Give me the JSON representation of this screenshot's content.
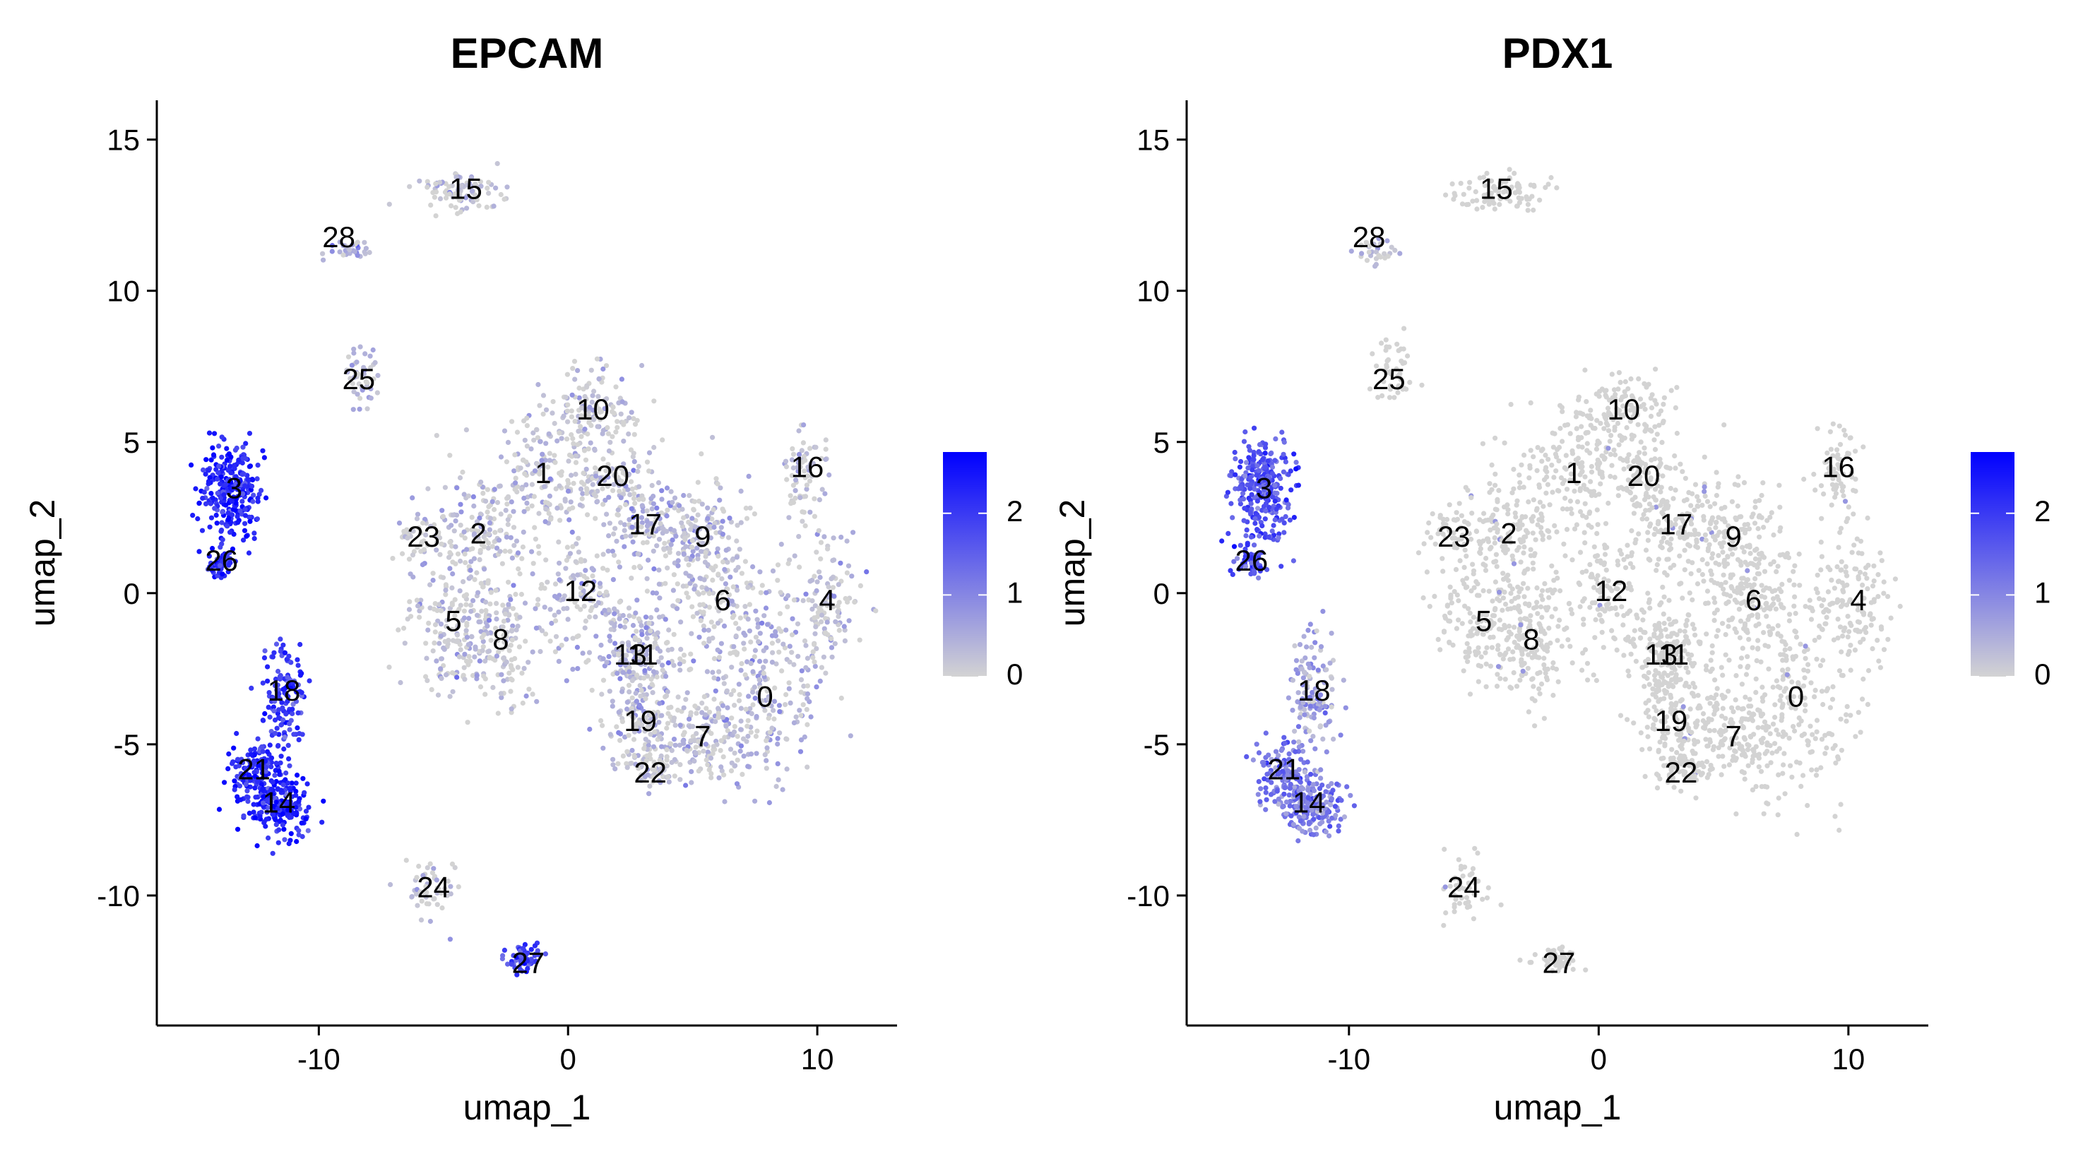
{
  "chart_data": [
    {
      "type": "scatter",
      "title": "EPCAM",
      "xlabel": "umap_1",
      "ylabel": "umap_2",
      "xlim": [
        -16.5,
        13.2
      ],
      "ylim": [
        -14.3,
        16.3
      ],
      "xticks": [
        {
          "value": -10,
          "label": "-10"
        },
        {
          "value": 0,
          "label": "0"
        },
        {
          "value": 10,
          "label": "10"
        }
      ],
      "yticks": [
        {
          "value": -10,
          "label": "-10"
        },
        {
          "value": -5,
          "label": "-5"
        },
        {
          "value": 0,
          "label": "0"
        },
        {
          "value": 5,
          "label": "5"
        },
        {
          "value": 10,
          "label": "10"
        },
        {
          "value": 15,
          "label": "15"
        }
      ],
      "color_scale": {
        "low": "#d3d3d3",
        "high": "#0000ff",
        "min": 0,
        "max": 2.75,
        "ticks": [
          {
            "value": 0,
            "label": "0"
          },
          {
            "value": 1,
            "label": "1"
          },
          {
            "value": 2,
            "label": "2"
          }
        ]
      },
      "grid": false,
      "legend": "right",
      "clusters": [
        {
          "label": "0",
          "x": 7.8,
          "y": -3.6,
          "sx": 1.5,
          "sy": 1.8,
          "n": 200,
          "expr": 0.35
        },
        {
          "label": "1",
          "x": -0.9,
          "y": 3.9,
          "sx": 1.3,
          "sy": 1.2,
          "n": 170,
          "expr": 0.1
        },
        {
          "label": "2",
          "x": -3.6,
          "y": 1.9,
          "sx": 1.3,
          "sy": 1.3,
          "n": 170,
          "expr": 0.1
        },
        {
          "label": "3",
          "x": -13.5,
          "y": 3.4,
          "sx": 0.75,
          "sy": 1.0,
          "n": 280,
          "expr": 2.3
        },
        {
          "label": "4",
          "x": 10.3,
          "y": -0.3,
          "sx": 1.0,
          "sy": 1.4,
          "n": 140,
          "expr": 0.1
        },
        {
          "label": "5",
          "x": -4.7,
          "y": -1.0,
          "sx": 1.1,
          "sy": 1.3,
          "n": 150,
          "expr": 0.1
        },
        {
          "label": "6",
          "x": 6.1,
          "y": -0.4,
          "sx": 1.3,
          "sy": 1.3,
          "n": 160,
          "expr": 0.15
        },
        {
          "label": "7",
          "x": 5.4,
          "y": -4.8,
          "sx": 1.3,
          "sy": 0.9,
          "n": 150,
          "expr": 0.15
        },
        {
          "label": "8",
          "x": -2.7,
          "y": -1.6,
          "sx": 1.1,
          "sy": 1.2,
          "n": 150,
          "expr": 0.1
        },
        {
          "label": "9",
          "x": 5.4,
          "y": 1.8,
          "sx": 1.1,
          "sy": 1.3,
          "n": 150,
          "expr": 0.2
        },
        {
          "label": "10",
          "x": 1.0,
          "y": 6.0,
          "sx": 1.2,
          "sy": 0.8,
          "n": 130,
          "expr": 0.1
        },
        {
          "label": "11",
          "x": 3.0,
          "y": -2.1,
          "sx": 0.9,
          "sy": 1.0,
          "n": 110,
          "expr": 0.3
        },
        {
          "label": "12",
          "x": 0.5,
          "y": 0.0,
          "sx": 1.0,
          "sy": 1.0,
          "n": 120,
          "expr": 0.15
        },
        {
          "label": "13",
          "x": 2.5,
          "y": -2.1,
          "sx": 0.9,
          "sy": 1.0,
          "n": 110,
          "expr": 0.3
        },
        {
          "label": "14",
          "x": -11.6,
          "y": -7.0,
          "sx": 0.8,
          "sy": 0.6,
          "n": 200,
          "expr": 2.3
        },
        {
          "label": "15",
          "x": -4.1,
          "y": 13.3,
          "sx": 1.0,
          "sy": 0.35,
          "n": 90,
          "expr": 0.05
        },
        {
          "label": "16",
          "x": 9.5,
          "y": 4.0,
          "sx": 0.55,
          "sy": 0.9,
          "n": 70,
          "expr": 0.05
        },
        {
          "label": "17",
          "x": 3.1,
          "y": 2.2,
          "sx": 0.9,
          "sy": 0.9,
          "n": 110,
          "expr": 0.3
        },
        {
          "label": "18",
          "x": -11.4,
          "y": -3.4,
          "sx": 0.5,
          "sy": 1.2,
          "n": 130,
          "expr": 2.0
        },
        {
          "label": "19",
          "x": 2.9,
          "y": -4.3,
          "sx": 0.9,
          "sy": 0.8,
          "n": 100,
          "expr": 0.2
        },
        {
          "label": "20",
          "x": 1.8,
          "y": 3.8,
          "sx": 0.9,
          "sy": 0.8,
          "n": 100,
          "expr": 0.1
        },
        {
          "label": "21",
          "x": -12.6,
          "y": -5.9,
          "sx": 0.6,
          "sy": 0.6,
          "n": 120,
          "expr": 2.2
        },
        {
          "label": "22",
          "x": 3.3,
          "y": -5.8,
          "sx": 0.7,
          "sy": 0.35,
          "n": 70,
          "expr": 0.1
        },
        {
          "label": "23",
          "x": -6.0,
          "y": 2.0,
          "sx": 0.5,
          "sy": 0.5,
          "n": 40,
          "expr": 0.05
        },
        {
          "label": "24",
          "x": -5.5,
          "y": -9.8,
          "sx": 0.6,
          "sy": 0.6,
          "n": 50,
          "expr": 0.1
        },
        {
          "label": "25",
          "x": -8.3,
          "y": 7.3,
          "sx": 0.55,
          "sy": 0.6,
          "n": 45,
          "expr": 0.3
        },
        {
          "label": "26",
          "x": -14.0,
          "y": 1.0,
          "sx": 0.35,
          "sy": 0.3,
          "n": 50,
          "expr": 2.1
        },
        {
          "label": "27",
          "x": -1.7,
          "y": -12.1,
          "sx": 0.45,
          "sy": 0.25,
          "n": 55,
          "expr": 1.9
        },
        {
          "label": "28",
          "x": -8.9,
          "y": 11.3,
          "sx": 0.6,
          "sy": 0.2,
          "n": 30,
          "expr": 0.6
        }
      ],
      "cluster_labels": [
        {
          "text": "0",
          "x": 7.9,
          "y": -3.5
        },
        {
          "text": "1",
          "x": -1.0,
          "y": 3.9
        },
        {
          "text": "2",
          "x": -3.6,
          "y": 1.9
        },
        {
          "text": "3",
          "x": -13.4,
          "y": 3.4
        },
        {
          "text": "4",
          "x": 10.4,
          "y": -0.3
        },
        {
          "text": "5",
          "x": -4.6,
          "y": -1.0
        },
        {
          "text": "6",
          "x": 6.2,
          "y": -0.3
        },
        {
          "text": "7",
          "x": 5.4,
          "y": -4.8
        },
        {
          "text": "8",
          "x": -2.7,
          "y": -1.6
        },
        {
          "text": "9",
          "x": 5.4,
          "y": 1.8
        },
        {
          "text": "10",
          "x": 1.0,
          "y": 6.0
        },
        {
          "text": "11",
          "x": 3.0,
          "y": -2.1
        },
        {
          "text": "12",
          "x": 0.5,
          "y": 0.0
        },
        {
          "text": "13",
          "x": 2.5,
          "y": -2.1
        },
        {
          "text": "14",
          "x": -11.6,
          "y": -7.0
        },
        {
          "text": "15",
          "x": -4.1,
          "y": 13.3
        },
        {
          "text": "16",
          "x": 9.6,
          "y": 4.1
        },
        {
          "text": "17",
          "x": 3.1,
          "y": 2.2
        },
        {
          "text": "18",
          "x": -11.4,
          "y": -3.3
        },
        {
          "text": "19",
          "x": 2.9,
          "y": -4.3
        },
        {
          "text": "20",
          "x": 1.8,
          "y": 3.8
        },
        {
          "text": "21",
          "x": -12.6,
          "y": -5.9
        },
        {
          "text": "22",
          "x": 3.3,
          "y": -6.0
        },
        {
          "text": "23",
          "x": -5.8,
          "y": 1.8
        },
        {
          "text": "24",
          "x": -5.4,
          "y": -9.8
        },
        {
          "text": "25",
          "x": -8.4,
          "y": 7.0
        },
        {
          "text": "26",
          "x": -13.9,
          "y": 1.0
        },
        {
          "text": "27",
          "x": -1.6,
          "y": -12.3
        },
        {
          "text": "28",
          "x": -9.2,
          "y": 11.7
        }
      ]
    },
    {
      "type": "scatter",
      "title": "PDX1",
      "xlabel": "umap_1",
      "ylabel": "umap_2",
      "xlim": [
        -16.5,
        13.2
      ],
      "ylim": [
        -14.3,
        16.3
      ],
      "xticks": [
        {
          "value": -10,
          "label": "-10"
        },
        {
          "value": 0,
          "label": "0"
        },
        {
          "value": 10,
          "label": "10"
        }
      ],
      "yticks": [
        {
          "value": -10,
          "label": "-10"
        },
        {
          "value": -5,
          "label": "-5"
        },
        {
          "value": 0,
          "label": "0"
        },
        {
          "value": 5,
          "label": "5"
        },
        {
          "value": 10,
          "label": "10"
        },
        {
          "value": 15,
          "label": "15"
        }
      ],
      "color_scale": {
        "low": "#d3d3d3",
        "high": "#0000ff",
        "min": 0,
        "max": 2.75,
        "ticks": [
          {
            "value": 0,
            "label": "0"
          },
          {
            "value": 1,
            "label": "1"
          },
          {
            "value": 2,
            "label": "2"
          }
        ]
      },
      "grid": false,
      "legend": "right",
      "clusters": [
        {
          "label": "0",
          "x": 7.8,
          "y": -3.6,
          "sx": 1.5,
          "sy": 1.8,
          "n": 200,
          "expr": 0.0
        },
        {
          "label": "1",
          "x": -0.9,
          "y": 3.9,
          "sx": 1.3,
          "sy": 1.2,
          "n": 170,
          "expr": 0.0
        },
        {
          "label": "2",
          "x": -3.6,
          "y": 1.9,
          "sx": 1.3,
          "sy": 1.3,
          "n": 170,
          "expr": 0.0
        },
        {
          "label": "3",
          "x": -13.5,
          "y": 3.4,
          "sx": 0.75,
          "sy": 1.0,
          "n": 280,
          "expr": 1.7
        },
        {
          "label": "4",
          "x": 10.3,
          "y": -0.3,
          "sx": 1.0,
          "sy": 1.4,
          "n": 140,
          "expr": 0.0
        },
        {
          "label": "5",
          "x": -4.7,
          "y": -1.0,
          "sx": 1.1,
          "sy": 1.3,
          "n": 150,
          "expr": 0.0
        },
        {
          "label": "6",
          "x": 6.1,
          "y": -0.4,
          "sx": 1.3,
          "sy": 1.3,
          "n": 160,
          "expr": 0.02
        },
        {
          "label": "7",
          "x": 5.4,
          "y": -4.8,
          "sx": 1.3,
          "sy": 0.9,
          "n": 150,
          "expr": 0.0
        },
        {
          "label": "8",
          "x": -2.7,
          "y": -1.6,
          "sx": 1.1,
          "sy": 1.2,
          "n": 150,
          "expr": 0.0
        },
        {
          "label": "9",
          "x": 5.4,
          "y": 1.8,
          "sx": 1.1,
          "sy": 1.3,
          "n": 150,
          "expr": 0.0
        },
        {
          "label": "10",
          "x": 1.0,
          "y": 6.0,
          "sx": 1.2,
          "sy": 0.8,
          "n": 130,
          "expr": 0.0
        },
        {
          "label": "11",
          "x": 3.0,
          "y": -2.1,
          "sx": 0.9,
          "sy": 1.0,
          "n": 110,
          "expr": 0.0
        },
        {
          "label": "12",
          "x": 0.5,
          "y": 0.0,
          "sx": 1.0,
          "sy": 1.0,
          "n": 120,
          "expr": 0.0
        },
        {
          "label": "13",
          "x": 2.5,
          "y": -2.1,
          "sx": 0.9,
          "sy": 1.0,
          "n": 110,
          "expr": 0.0
        },
        {
          "label": "14",
          "x": -11.6,
          "y": -7.0,
          "sx": 0.8,
          "sy": 0.6,
          "n": 200,
          "expr": 1.1
        },
        {
          "label": "15",
          "x": -4.1,
          "y": 13.3,
          "sx": 1.0,
          "sy": 0.35,
          "n": 90,
          "expr": 0.0
        },
        {
          "label": "16",
          "x": 9.5,
          "y": 4.0,
          "sx": 0.55,
          "sy": 0.9,
          "n": 70,
          "expr": 0.0
        },
        {
          "label": "17",
          "x": 3.1,
          "y": 2.2,
          "sx": 0.9,
          "sy": 0.9,
          "n": 110,
          "expr": 0.0
        },
        {
          "label": "18",
          "x": -11.4,
          "y": -3.4,
          "sx": 0.5,
          "sy": 1.2,
          "n": 130,
          "expr": 0.6
        },
        {
          "label": "19",
          "x": 2.9,
          "y": -4.3,
          "sx": 0.9,
          "sy": 0.8,
          "n": 100,
          "expr": 0.0
        },
        {
          "label": "20",
          "x": 1.8,
          "y": 3.8,
          "sx": 0.9,
          "sy": 0.8,
          "n": 100,
          "expr": 0.0
        },
        {
          "label": "21",
          "x": -12.6,
          "y": -5.9,
          "sx": 0.6,
          "sy": 0.6,
          "n": 120,
          "expr": 1.2
        },
        {
          "label": "22",
          "x": 3.3,
          "y": -5.8,
          "sx": 0.7,
          "sy": 0.35,
          "n": 70,
          "expr": 0.0
        },
        {
          "label": "23",
          "x": -6.0,
          "y": 2.0,
          "sx": 0.5,
          "sy": 0.5,
          "n": 40,
          "expr": 0.0
        },
        {
          "label": "24",
          "x": -5.5,
          "y": -9.8,
          "sx": 0.6,
          "sy": 0.6,
          "n": 50,
          "expr": 0.0
        },
        {
          "label": "25",
          "x": -8.3,
          "y": 7.3,
          "sx": 0.55,
          "sy": 0.6,
          "n": 45,
          "expr": 0.0
        },
        {
          "label": "26",
          "x": -14.0,
          "y": 1.0,
          "sx": 0.35,
          "sy": 0.3,
          "n": 50,
          "expr": 1.6
        },
        {
          "label": "27",
          "x": -1.7,
          "y": -12.1,
          "sx": 0.45,
          "sy": 0.25,
          "n": 55,
          "expr": 0.0
        },
        {
          "label": "28",
          "x": -8.9,
          "y": 11.3,
          "sx": 0.6,
          "sy": 0.2,
          "n": 30,
          "expr": 0.2
        }
      ],
      "cluster_labels": [
        {
          "text": "0",
          "x": 7.9,
          "y": -3.5
        },
        {
          "text": "1",
          "x": -1.0,
          "y": 3.9
        },
        {
          "text": "2",
          "x": -3.6,
          "y": 1.9
        },
        {
          "text": "3",
          "x": -13.4,
          "y": 3.4
        },
        {
          "text": "4",
          "x": 10.4,
          "y": -0.3
        },
        {
          "text": "5",
          "x": -4.6,
          "y": -1.0
        },
        {
          "text": "6",
          "x": 6.2,
          "y": -0.3
        },
        {
          "text": "7",
          "x": 5.4,
          "y": -4.8
        },
        {
          "text": "8",
          "x": -2.7,
          "y": -1.6
        },
        {
          "text": "9",
          "x": 5.4,
          "y": 1.8
        },
        {
          "text": "10",
          "x": 1.0,
          "y": 6.0
        },
        {
          "text": "11",
          "x": 3.0,
          "y": -2.1
        },
        {
          "text": "12",
          "x": 0.5,
          "y": 0.0
        },
        {
          "text": "13",
          "x": 2.5,
          "y": -2.1
        },
        {
          "text": "14",
          "x": -11.6,
          "y": -7.0
        },
        {
          "text": "15",
          "x": -4.1,
          "y": 13.3
        },
        {
          "text": "16",
          "x": 9.6,
          "y": 4.1
        },
        {
          "text": "17",
          "x": 3.1,
          "y": 2.2
        },
        {
          "text": "18",
          "x": -11.4,
          "y": -3.3
        },
        {
          "text": "19",
          "x": 2.9,
          "y": -4.3
        },
        {
          "text": "20",
          "x": 1.8,
          "y": 3.8
        },
        {
          "text": "21",
          "x": -12.6,
          "y": -5.9
        },
        {
          "text": "22",
          "x": 3.3,
          "y": -6.0
        },
        {
          "text": "23",
          "x": -5.8,
          "y": 1.8
        },
        {
          "text": "24",
          "x": -5.4,
          "y": -9.8
        },
        {
          "text": "25",
          "x": -8.4,
          "y": 7.0
        },
        {
          "text": "26",
          "x": -13.9,
          "y": 1.0
        },
        {
          "text": "27",
          "x": -1.6,
          "y": -12.3
        },
        {
          "text": "28",
          "x": -9.2,
          "y": 11.7
        }
      ]
    }
  ]
}
